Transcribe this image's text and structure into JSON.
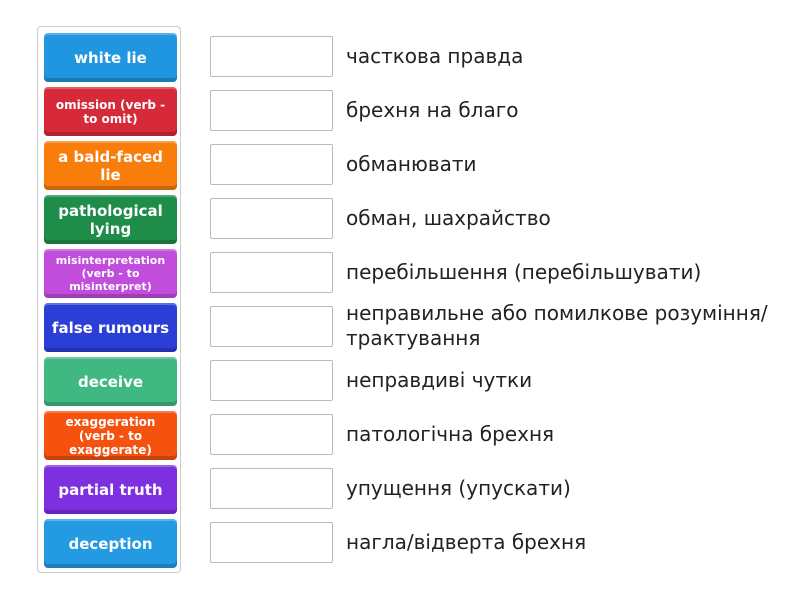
{
  "tiles": [
    {
      "label": "white lie",
      "color": "#2196e0"
    },
    {
      "label": "omission (verb - to omit)",
      "color": "#d6293a"
    },
    {
      "label": "a bald-faced lie",
      "color": "#f97d0a"
    },
    {
      "label": "pathological lying",
      "color": "#1e8d4a"
    },
    {
      "label": "misinterpretation (verb - to misinterpret)",
      "color": "#c04ddb"
    },
    {
      "label": "false rumours",
      "color": "#2b3fd6"
    },
    {
      "label": "deceive",
      "color": "#40b882"
    },
    {
      "label": "exaggeration (verb - to exaggerate)",
      "color": "#f5520f"
    },
    {
      "label": "partial truth",
      "color": "#7e2fe0"
    },
    {
      "label": "deception",
      "color": "#249ae3"
    }
  ],
  "definitions": [
    "часткова правда",
    "брехня на благо",
    "обманювати",
    "обман, шахрайство",
    "перебільшення (перебільшувати)",
    "неправильне або помилкове розуміння/трактування",
    "неправдиві чутки",
    "патологічна брехня",
    "упущення (упускати)",
    "нагла/відверта брехня"
  ]
}
